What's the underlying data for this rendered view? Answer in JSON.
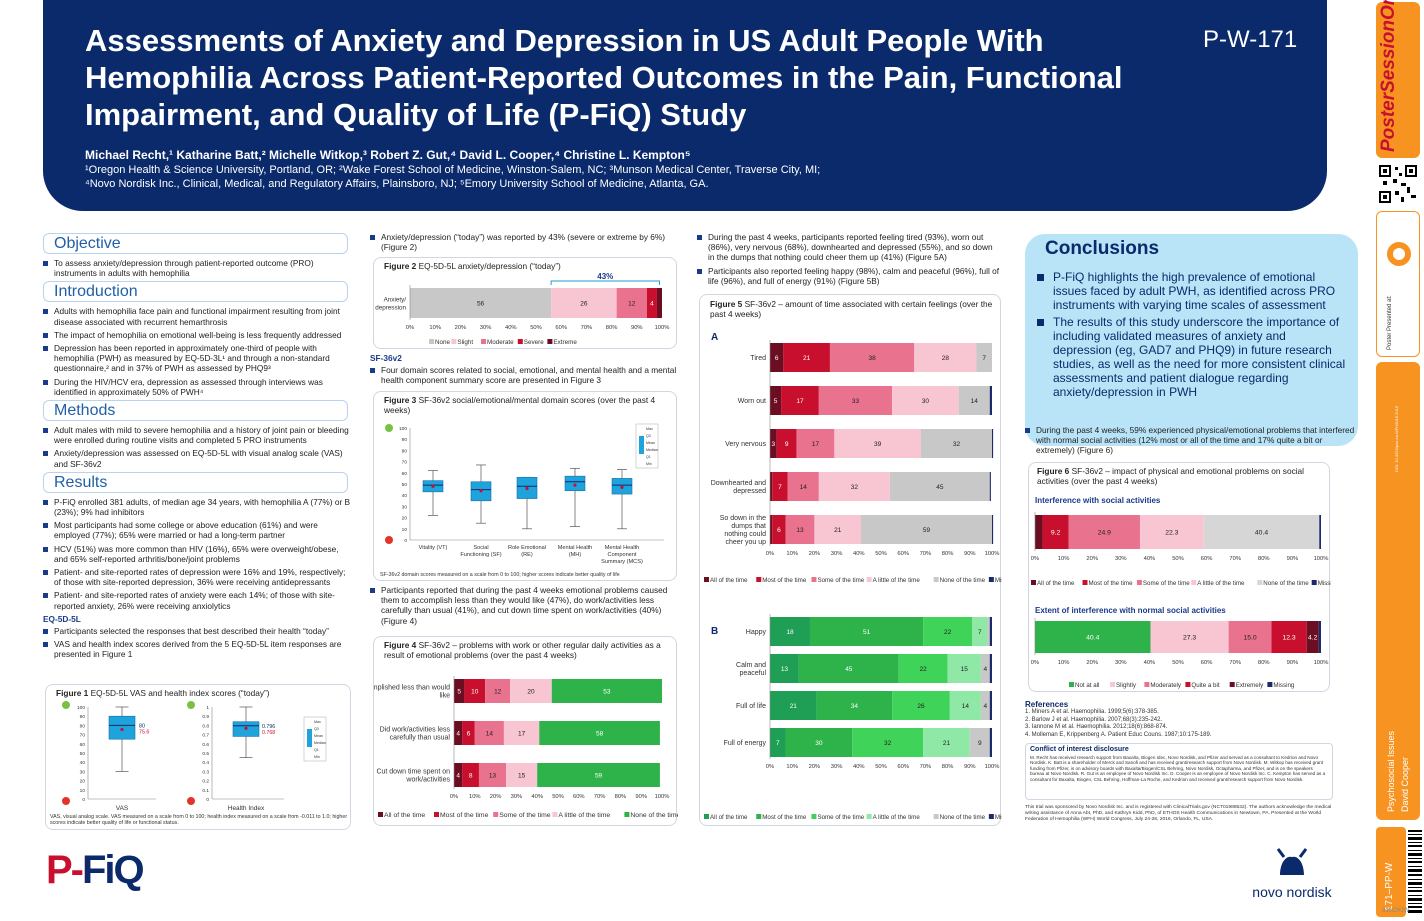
{
  "poster": {
    "title": "Assessments of Anxiety and Depression in US Adult People With Hemophilia Across Patient-Reported Outcomes in the Pain, Functional Impairment, and Quality of Life (P-FiQ) Study",
    "id": "P-W-171",
    "authors": "Michael Recht,¹ Katharine Batt,² Michelle Witkop,³ Robert Z. Gut,⁴ David L. Cooper,⁴ Christine L. Kempton⁵",
    "affiliation_1": "¹Oregon Health & Science University, Portland, OR; ²Wake Forest School of Medicine, Winston-Salem, NC; ³Munson Medical Center, Traverse City, MI;",
    "affiliation_2": "⁴Novo Nordisk Inc., Clinical, Medical, and Regulatory Affairs, Plainsboro, NJ; ⁵Emory University School of Medicine, Atlanta, GA."
  },
  "strip": {
    "brand": "PosterSessionOnline",
    "brand_com": ".com",
    "presented_at": "Poster Presented at:",
    "doi": "DOI: 10.3252/pso.eu.WFH2016.2016",
    "topic": "Psychosocial Issues",
    "presenter": "David Cooper",
    "code": "171–PP-W",
    "footer_code": "910CHJW"
  },
  "col1": {
    "objective_head": "Objective",
    "objective": [
      "To assess anxiety/depression through patient-reported outcome (PRO) instruments in adults with hemophilia"
    ],
    "intro_head": "Introduction",
    "intro": [
      "Adults with hemophilia face pain and functional impairment resulting from joint disease associated with recurrent hemarthrosis",
      "The impact of hemophilia on emotional well-being is less frequently addressed",
      "Depression has been reported in approximately one-third of people with hemophilia (PWH) as measured by EQ-5D-3L¹ and through a non-standard questionnaire,² and in 37% of PWH as assessed by PHQ9³",
      "During the HIV/HCV era, depression as assessed through interviews was identified in approximately 50% of PWH⁴"
    ],
    "methods_head": "Methods",
    "methods": [
      "Adult males with mild to severe hemophilia and a history of joint pain or bleeding were enrolled during routine visits and completed 5 PRO instruments",
      "Anxiety/depression was assessed on EQ-5D-5L with visual analog scale (VAS) and SF-36v2"
    ],
    "results_head": "Results",
    "results": [
      "P-FiQ enrolled 381 adults, of median age 34 years, with hemophilia A (77%) or B (23%); 9% had inhibitors",
      "Most participants had some college or above education (61%) and were employed (77%); 65% were married or had a long-term partner",
      "HCV (51%) was more common than HIV (16%), 65% were overweight/obese, and 65% self-reported arthritis/bone/joint problems",
      "Patient- and site-reported rates of depression were 16% and 19%, respectively; of those with site-reported depression, 36% were receiving antidepressants",
      "Patient- and site-reported rates of anxiety were each 14%; of those with site-reported anxiety, 26% were receiving anxiolytics"
    ],
    "eq_head": "EQ-5D-5L",
    "eq": [
      "Participants selected the responses that best described their health “today”",
      "VAS and health index scores derived from the 5 EQ-5D-5L item responses are presented in Figure 1"
    ],
    "fig1_title": "Figure 1",
    "fig1_caption": " EQ-5D-5L VAS and health index scores (“today”)",
    "fig1_note": "VAS, visual analog scale. VAS measured on a scale from 0 to 100; health index measured on a scale from -0.011 to 1.0; higher scores indicate better quality of life or functional status.",
    "logo": "P-FiQ"
  },
  "col2": {
    "bullet_top": "Anxiety/depression (“today”) was reported by 43% (severe or extreme by 6%) (Figure 2)",
    "fig2_title": "Figure 2",
    "fig2_caption": " EQ-5D-5L anxiety/depression (“today”)",
    "fig2_bracket": "43%",
    "sf_head": "SF-36v2",
    "sf_bullet": "Four domain scores related to social, emotional, and mental health and a mental health component summary score are presented in Figure 3",
    "fig3_title": "Figure 3",
    "fig3_caption": " SF-36v2 social/emotional/mental domain scores (over the past 4 weeks)",
    "fig3_note": "SF-36v2 domain scores measured on a scale from 0 to 100; higher scores indicate better quality of life",
    "bullet_mid": "Participants reported that during the past 4 weeks emotional problems caused them to accomplish less than they would like (47%), do work/activities less carefully than usual (41%), and cut down time spent on work/activities (40%) (Figure 4)",
    "fig4_title": "Figure 4",
    "fig4_caption": " SF-36v2 – problems with work or other regular daily activities as a result of emotional problems (over the past 4 weeks)"
  },
  "col3": {
    "bullets": [
      "During the past 4 weeks, participants reported feeling tired (93%), worn out (86%), very nervous (68%), downhearted and depressed (55%), and so down in the dumps that nothing could cheer them up (41%) (Figure 5A)",
      "Participants also reported feeling happy (98%), calm and peaceful (96%), full of life (96%), and full of energy (91%) (Figure 5B)"
    ],
    "fig5_title": "Figure 5",
    "fig5_caption": " SF-36v2 – amount of time associated with certain feelings (over the past 4 weeks)",
    "panel_a": "A",
    "panel_b": "B"
  },
  "col4": {
    "conclusions_head": "Conclusions",
    "conclusions": [
      "P-FiQ highlights the high prevalence of emotional issues faced by adult PWH, as identified across PRO instruments with varying time scales of assessment",
      "The results of this study underscore the importance of including validated measures of anxiety and depression (eg, GAD7 and PHQ9) in future research studies, as well as the need for more consistent clinical assessments and patient dialogue regarding anxiety/depression in PWH"
    ],
    "bullet": "During the past 4 weeks, 59% experienced physical/emotional problems that interfered with normal social activities (12% most or all of the time and 17% quite a bit or extremely) (Figure 6)",
    "fig6_title": "Figure 6",
    "fig6_caption": " SF-36v2 – impact of physical and emotional problems on social activities (over the past 4 weeks)",
    "fig6_sub1": "Interference with social activities",
    "fig6_sub2": "Extent of interference with normal social activities",
    "refs_head": "References",
    "refs": [
      "1.  Miners A et al. Haemophilia. 1999;5(6):378-385.",
      "2.  Barlow J et al. Haemophilia. 2007;68(3):235-242.",
      "3.  Iannone M et al. Haemophilia. 2012;18(6):868-874.",
      "4.  Molleman E, Krippenberg A. Patient Educ Couns. 1987;10:175-189."
    ],
    "coi_head": "Conflict of interest disclosure",
    "coi": "M. Recht has received research support from Baxalta, Biogen Idec, Novo Nordisk, and Pfizer and served as a consultant to Kedrion and Novo Nordisk. K. Batt is a shareholder of Merck and Sanofi and has received grant/research support from Novo Nordisk. M. Witkop has received grant funding from Pfizer, is on advisory boards with Baxalta/Biogen/CSL Behring, Novo Nordisk, Octapharma, and Pfizer, and is on the speakers bureau at Novo Nordisk. R. Gut is an employee of Novo Nordisk Inc. D. Cooper is an employee of Novo Nordisk Inc. C. Kempton has served as a consultant for Baxalta, Biogen, CSL Behring, Hoffman-La Roche, and Kedrion and received grant/research support from Novo Nordisk.",
    "sponsor": "This trial was sponsored by Novo Nordisk Inc. and is registered with ClinicalTrials.gov (NCT01988532). The authors acknowledge the medical writing assistance of Anna Abt, PhD, and Kathryn Kidd, PhD, of ETHOS Health Communications in Newtown, PA. Presented at the World Federation of Hemophilia (WFH) World Congress, July 24-28, 2016, Orlando, FL, USA.",
    "novo": "novo nordisk"
  },
  "chart_data": [
    {
      "id": "fig1",
      "type": "box",
      "panels": [
        {
          "label": "VAS",
          "median": 80,
          "mean": 75.6,
          "q1": 65,
          "q3": 90,
          "min": 30,
          "max": 100,
          "ylim": [
            0,
            100
          ],
          "ticks": [
            0,
            10,
            20,
            30,
            40,
            50,
            60,
            70,
            80,
            90,
            100
          ],
          "median_label": "80",
          "mean_label": "75.6"
        },
        {
          "label": "Health Index",
          "median": 0.796,
          "mean": 0.768,
          "q1": 0.68,
          "q3": 0.84,
          "min": 0.45,
          "max": 1.0,
          "ylim": [
            0,
            1
          ],
          "ticks": [
            0,
            0.1,
            0.2,
            0.3,
            0.4,
            0.5,
            0.6,
            0.7,
            0.8,
            0.9,
            1
          ],
          "median_label": "0.796",
          "mean_label": "0.768"
        }
      ],
      "key": [
        "Max",
        "Q3",
        "Mean",
        "Median",
        "Q1",
        "Min"
      ]
    },
    {
      "id": "fig2",
      "type": "stacked_bar_h",
      "categories": [
        "Anxiety/ depression"
      ],
      "series": [
        {
          "name": "None",
          "values": [
            56
          ],
          "color": "#c8c8c8"
        },
        {
          "name": "Slight",
          "values": [
            26
          ],
          "color": "#f7c6d2"
        },
        {
          "name": "Moderate",
          "values": [
            12
          ],
          "color": "#e9728f"
        },
        {
          "name": "Severe",
          "values": [
            4
          ],
          "color": "#c8102e"
        },
        {
          "name": "Extreme",
          "values": [
            2
          ],
          "color": "#6b0e22"
        }
      ],
      "xticks": [
        "0%",
        "10%",
        "20%",
        "30%",
        "40%",
        "50%",
        "60%",
        "70%",
        "80%",
        "90%",
        "100%"
      ]
    },
    {
      "id": "fig3",
      "type": "box",
      "categories": [
        "Vitality (VT)",
        "Social Functioning (SF)",
        "Role Emotional (RE)",
        "Mental Health (MH)",
        "Mental Health Component Summary (MCS)"
      ],
      "boxes": [
        {
          "q1": 43,
          "q3": 53,
          "median": 49,
          "mean": 48,
          "min": 22,
          "max": 62
        },
        {
          "q1": 35,
          "q3": 52,
          "median": 45,
          "mean": 44,
          "min": 15,
          "max": 67
        },
        {
          "q1": 37,
          "q3": 56,
          "median": 48,
          "mean": 46,
          "min": 10,
          "max": 56
        },
        {
          "q1": 44,
          "q3": 57,
          "median": 52,
          "mean": 49,
          "min": 12,
          "max": 64
        },
        {
          "q1": 41,
          "q3": 55,
          "median": 49,
          "mean": 47,
          "min": 10,
          "max": 63
        }
      ],
      "ylim": [
        0,
        100
      ],
      "ticks": [
        0,
        10,
        20,
        30,
        40,
        50,
        60,
        70,
        80,
        90,
        100
      ],
      "key": [
        "Max",
        "Q3",
        "Mean",
        "Median",
        "Q1",
        "Min"
      ]
    },
    {
      "id": "fig4",
      "type": "stacked_bar_h",
      "categories": [
        "Accomplished less than would like",
        "Did work/activities less carefully than usual",
        "Cut down time spent on work/activities"
      ],
      "series": [
        {
          "name": "All of the time",
          "values": [
            5,
            4,
            4
          ],
          "color": "#6b0e22"
        },
        {
          "name": "Most of the time",
          "values": [
            10,
            6,
            8
          ],
          "color": "#c8102e"
        },
        {
          "name": "Some of the time",
          "values": [
            12,
            14,
            13
          ],
          "color": "#e9728f"
        },
        {
          "name": "A little of the time",
          "values": [
            20,
            17,
            15
          ],
          "color": "#f7c6d2"
        },
        {
          "name": "None of the time",
          "values": [
            53,
            58,
            59
          ],
          "color": "#2db34a"
        }
      ],
      "xticks": [
        "0%",
        "10%",
        "20%",
        "30%",
        "40%",
        "50%",
        "60%",
        "70%",
        "80%",
        "90%",
        "100%"
      ]
    },
    {
      "id": "fig5a",
      "type": "stacked_bar_h",
      "categories": [
        "Tired",
        "Worn out",
        "Very nervous",
        "Downhearted and depressed",
        "So down in the dumps that nothing could cheer you up"
      ],
      "series": [
        {
          "name": "All of the time",
          "values": [
            6,
            5,
            3,
            1,
            1
          ],
          "color": "#6b0e22"
        },
        {
          "name": "Most of the time",
          "values": [
            21,
            17,
            9,
            7,
            6
          ],
          "color": "#c8102e"
        },
        {
          "name": "Some of the time",
          "values": [
            38,
            33,
            17,
            14,
            13
          ],
          "color": "#e9728f"
        },
        {
          "name": "A little of the time",
          "values": [
            28,
            30,
            39,
            32,
            21
          ],
          "color": "#f7c6d2"
        },
        {
          "name": "None of the time",
          "values": [
            7,
            14,
            32,
            45,
            59
          ],
          "color": "#c8c8c8"
        },
        {
          "name": "Missing",
          "values": [
            0,
            1,
            0.5,
            0.5,
            0.5
          ],
          "color": "#1a2a6b"
        }
      ],
      "labels_shown": [
        [
          "6",
          "21",
          "38",
          "28",
          "7"
        ],
        [
          "5",
          "17",
          "33",
          "30",
          "14"
        ],
        [
          "3",
          "9",
          "17",
          "39",
          "32"
        ],
        [
          "",
          "7",
          "14",
          "32",
          "45"
        ],
        [
          "",
          "6",
          "13",
          "21",
          "59"
        ]
      ],
      "xticks": [
        "0%",
        "10%",
        "20%",
        "30%",
        "40%",
        "50%",
        "60%",
        "70%",
        "80%",
        "90%",
        "100%"
      ]
    },
    {
      "id": "fig5b",
      "type": "stacked_bar_h",
      "categories": [
        "Happy",
        "Calm and peaceful",
        "Full of life",
        "Full of energy"
      ],
      "series": [
        {
          "name": "All of the time",
          "values": [
            18,
            13,
            21,
            7
          ],
          "color": "#1f9e55"
        },
        {
          "name": "Most of the time",
          "values": [
            51,
            45,
            34,
            30
          ],
          "color": "#2db34a"
        },
        {
          "name": "Some of the time",
          "values": [
            22,
            22,
            26,
            32
          ],
          "color": "#3fd35a"
        },
        {
          "name": "A little of the time",
          "values": [
            7,
            15,
            14,
            21
          ],
          "color": "#8fe8a6"
        },
        {
          "name": "None of the time",
          "values": [
            1,
            4,
            4,
            9
          ],
          "color": "#c8c8c8"
        },
        {
          "name": "Missing",
          "values": [
            1,
            1,
            1,
            1
          ],
          "color": "#1a2a6b"
        }
      ],
      "labels_shown": [
        [
          "18",
          "51",
          "22",
          "7",
          ""
        ],
        [
          "13",
          "45",
          "22",
          "15",
          "4"
        ],
        [
          "21",
          "34",
          "26",
          "14",
          "4"
        ],
        [
          "7",
          "30",
          "32",
          "21",
          "9"
        ]
      ],
      "xticks": [
        "0%",
        "10%",
        "20%",
        "30%",
        "40%",
        "50%",
        "60%",
        "70%",
        "80%",
        "90%",
        "100%"
      ]
    },
    {
      "id": "fig6a",
      "type": "stacked_bar_h",
      "title": "Interference with social activities",
      "categories": [
        ""
      ],
      "series": [
        {
          "name": "All of the time",
          "values": [
            2.6
          ],
          "color": "#6b0e22"
        },
        {
          "name": "Most of the time",
          "values": [
            9.2
          ],
          "color": "#c8102e"
        },
        {
          "name": "Some of the time",
          "values": [
            24.9
          ],
          "color": "#e9728f"
        },
        {
          "name": "A little of the time",
          "values": [
            22.3
          ],
          "color": "#f7c6d2"
        },
        {
          "name": "None of the time",
          "values": [
            40.4
          ],
          "color": "#d6d6d6"
        },
        {
          "name": "Missing",
          "values": [
            0.6
          ],
          "color": "#1a2a6b"
        }
      ],
      "labels_shown": [
        [
          "",
          "9.2",
          "24.9",
          "22.3",
          "40.4",
          ""
        ]
      ],
      "xticks": [
        "0%",
        "10%",
        "20%",
        "30%",
        "40%",
        "50%",
        "60%",
        "70%",
        "80%",
        "90%",
        "100%"
      ]
    },
    {
      "id": "fig6b",
      "type": "stacked_bar_h",
      "title": "Extent of interference with normal social activities",
      "categories": [
        ""
      ],
      "series": [
        {
          "name": "Not at all",
          "values": [
            40.4
          ],
          "color": "#2db34a"
        },
        {
          "name": "Slightly",
          "values": [
            27.3
          ],
          "color": "#f7c6d2"
        },
        {
          "name": "Moderately",
          "values": [
            15.0
          ],
          "color": "#e9728f"
        },
        {
          "name": "Quite a bit",
          "values": [
            12.3
          ],
          "color": "#c8102e"
        },
        {
          "name": "Extremely",
          "values": [
            4.2
          ],
          "color": "#6b0e22"
        },
        {
          "name": "Missing",
          "values": [
            0.8
          ],
          "color": "#1a2a6b"
        }
      ],
      "labels_shown": [
        [
          "40.4",
          "27.3",
          "15.0",
          "12.3",
          "4.2",
          ""
        ]
      ],
      "xticks": [
        "0%",
        "10%",
        "20%",
        "30%",
        "40%",
        "50%",
        "60%",
        "70%",
        "80%",
        "90%",
        "100%"
      ]
    }
  ]
}
